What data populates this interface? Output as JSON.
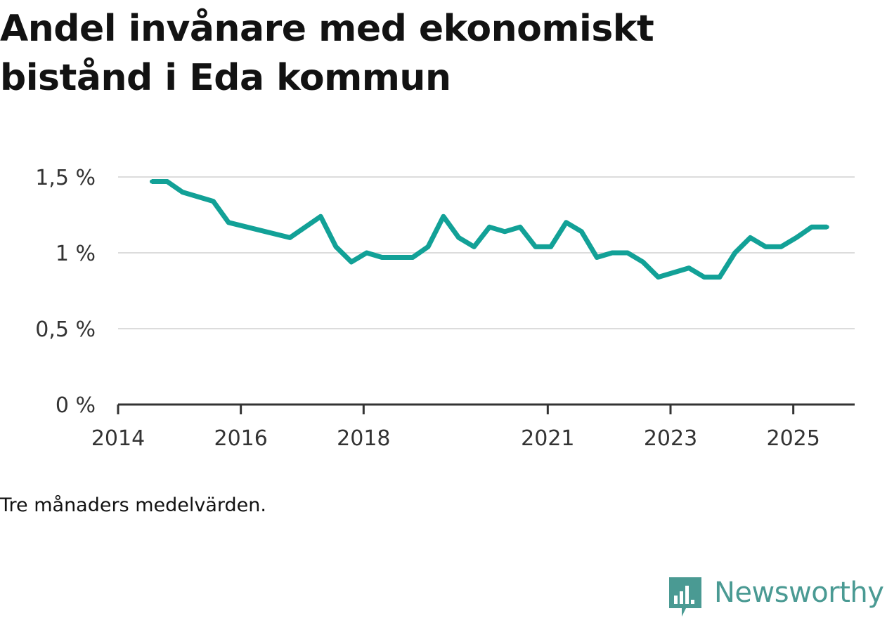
{
  "title": "Andel invånare med ekonomiskt bistånd i Eda kommun",
  "note": "Tre månaders medelvärden.",
  "brand": {
    "name": "Newsworthy",
    "icon": "newsworthy-logo-icon",
    "color": "#4a9a93"
  },
  "chart_data": {
    "type": "line",
    "title": "Andel invånare med ekonomiskt bistånd i Eda kommun",
    "xlabel": "",
    "ylabel": "",
    "xlim": [
      2014.0,
      2026.0
    ],
    "ylim": [
      0,
      1.5
    ],
    "y_ticks": [
      {
        "value": 0,
        "label": "0 %"
      },
      {
        "value": 0.5,
        "label": "0,5 %"
      },
      {
        "value": 1.0,
        "label": "1 %"
      },
      {
        "value": 1.5,
        "label": "1,5 %"
      }
    ],
    "x_ticks": [
      {
        "value": 2014,
        "label": "2014"
      },
      {
        "value": 2016,
        "label": "2016"
      },
      {
        "value": 2018,
        "label": "2018"
      },
      {
        "value": 2021,
        "label": "2021"
      },
      {
        "value": 2023,
        "label": "2023"
      },
      {
        "value": 2025,
        "label": "2025"
      }
    ],
    "grid": true,
    "series": [
      {
        "name": "Andel invånare med ekonomiskt bistånd",
        "color": "#12a197",
        "x": [
          2014.55,
          2014.8,
          2015.05,
          2015.55,
          2015.8,
          2016.8,
          2017.3,
          2017.55,
          2017.8,
          2018.05,
          2018.3,
          2018.55,
          2018.8,
          2019.05,
          2019.3,
          2019.55,
          2019.8,
          2020.05,
          2020.3,
          2020.55,
          2020.8,
          2021.05,
          2021.3,
          2021.55,
          2021.8,
          2022.05,
          2022.3,
          2022.55,
          2022.8,
          2023.05,
          2023.3,
          2023.55,
          2023.8,
          2024.05,
          2024.3,
          2024.55,
          2024.8,
          2025.05,
          2025.3,
          2025.55
        ],
        "values": [
          1.47,
          1.47,
          1.4,
          1.34,
          1.2,
          1.1,
          1.24,
          1.04,
          0.94,
          1.0,
          0.97,
          0.97,
          0.97,
          1.04,
          1.24,
          1.1,
          1.04,
          1.17,
          1.14,
          1.17,
          1.04,
          1.04,
          1.2,
          1.14,
          0.97,
          1.0,
          1.0,
          0.94,
          0.84,
          0.87,
          0.9,
          0.84,
          0.84,
          1.0,
          1.1,
          1.04,
          1.04,
          1.1,
          1.17,
          1.17
        ]
      }
    ]
  }
}
